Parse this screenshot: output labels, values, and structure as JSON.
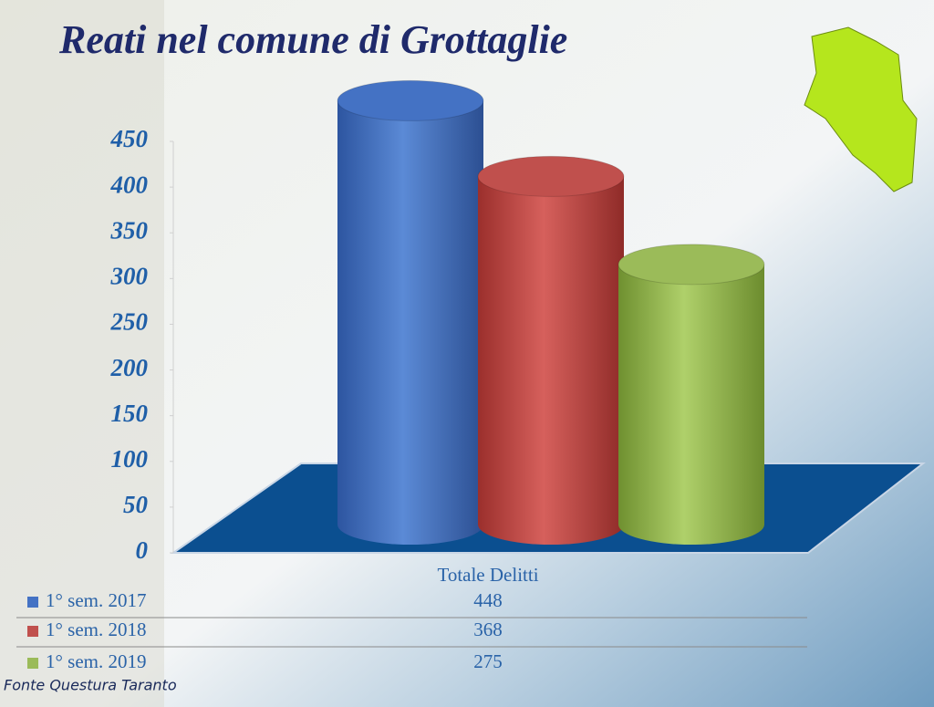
{
  "chart_data": {
    "type": "bar",
    "title": "Reati nel comune di Grottaglie",
    "categories": [
      "Totale Delitti"
    ],
    "series": [
      {
        "name": "1° sem. 2017",
        "color": "#4472c4",
        "values": [
          448
        ]
      },
      {
        "name": "1° sem. 2018",
        "color": "#c0504d",
        "values": [
          368
        ]
      },
      {
        "name": "1° sem. 2019",
        "color": "#9bbb59",
        "values": [
          275
        ]
      }
    ],
    "ylim": [
      0,
      450
    ],
    "yticks": [
      0,
      50,
      100,
      150,
      200,
      250,
      300,
      350,
      400,
      450
    ],
    "source": "Fonte Questura Taranto"
  }
}
